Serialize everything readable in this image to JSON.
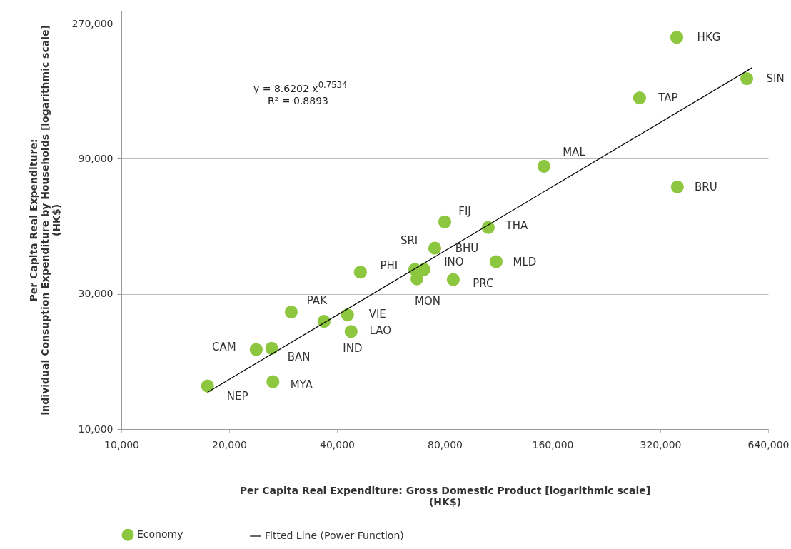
{
  "chart_data": {
    "type": "scatter",
    "xlabel": "Per Capita Real Expenditure: Gross Domestic Product  [logarithmic scale]\n(HK$)",
    "ylabel": "Per Capita Real Expenditure:\nIndividual Consuption Expenditure by Households  [logarithmic scale]\n(HK$)",
    "log": "xy",
    "grid": "y",
    "legend": "bottom",
    "xlim": [
      10000,
      640000
    ],
    "ylim": [
      10000,
      300000
    ],
    "xticks": [
      {
        "value": 10000,
        "label": "10,000"
      },
      {
        "value": 20000,
        "label": "20,000"
      },
      {
        "value": 40000,
        "label": "40,000"
      },
      {
        "value": 80000,
        "label": "80,000"
      },
      {
        "value": 160000,
        "label": "160,000"
      },
      {
        "value": 320000,
        "label": "320,000"
      },
      {
        "value": 640000,
        "label": "640,000"
      }
    ],
    "yticks": [
      {
        "value": 10000,
        "label": "10,000"
      },
      {
        "value": 30000,
        "label": "30,000"
      },
      {
        "value": 90000,
        "label": "90,000"
      },
      {
        "value": 270000,
        "label": "270,000"
      }
    ],
    "series": [
      {
        "name": "Economy",
        "color": "#8dc63f",
        "type": "scatter",
        "x": [
          355600,
          557700,
          280000,
          151400,
          357000,
          80000,
          105800,
          75000,
          111300,
          46500,
          66000,
          70000,
          66900,
          84500,
          29800,
          36800,
          42800,
          43800,
          23800,
          26300,
          26500,
          17400
        ],
        "values": [
          241700,
          172800,
          147700,
          84700,
          71600,
          53900,
          51500,
          43500,
          39000,
          35800,
          36600,
          36600,
          33900,
          33700,
          25900,
          24000,
          25300,
          22100,
          19100,
          19300,
          14700,
          14200
        ]
      },
      {
        "name": "Fitted Line (Power Function)",
        "color": "#000000",
        "type": "line",
        "x": [
          17400,
          577000
        ],
        "values": [
          13480,
          188700
        ]
      }
    ],
    "annotations": [
      "y = 8.6202 x$^{0.7534}$",
      "R² = 0.8893",
      {
        "text": "HKG",
        "x": 355600,
        "y": 241700
      },
      {
        "text": "SIN",
        "x": 557700,
        "y": 172800
      },
      {
        "text": "TAP",
        "x": 280000,
        "y": 147700
      },
      {
        "text": "MAL",
        "x": 151400,
        "y": 84700
      },
      {
        "text": "BRU",
        "x": 357000,
        "y": 71600
      },
      {
        "text": "FIJ",
        "x": 80000,
        "y": 53900
      },
      {
        "text": "THA",
        "x": 105800,
        "y": 51500
      },
      {
        "text": "BHU",
        "x": 75000,
        "y": 43500
      },
      {
        "text": "MLD",
        "x": 111300,
        "y": 39000
      },
      {
        "text": "PHI",
        "x": 46500,
        "y": 35800
      },
      {
        "text": "SRI",
        "x": 66000,
        "y": 36600
      },
      {
        "text": "INO",
        "x": 70000,
        "y": 36600
      },
      {
        "text": "MON",
        "x": 66900,
        "y": 33900
      },
      {
        "text": "PRC",
        "x": 84500,
        "y": 33700
      },
      {
        "text": "PAK",
        "x": 29800,
        "y": 25900
      },
      {
        "text": "IND",
        "x": 36800,
        "y": 24000
      },
      {
        "text": "VIE",
        "x": 42800,
        "y": 25300
      },
      {
        "text": "LAO",
        "x": 43800,
        "y": 22100
      },
      {
        "text": "CAM",
        "x": 23800,
        "y": 19100
      },
      {
        "text": "BAN",
        "x": 26300,
        "y": 19300
      },
      {
        "text": "MYA",
        "x": 26500,
        "y": 14700
      },
      {
        "text": "NEP",
        "x": 17400,
        "y": 14200
      }
    ]
  }
}
